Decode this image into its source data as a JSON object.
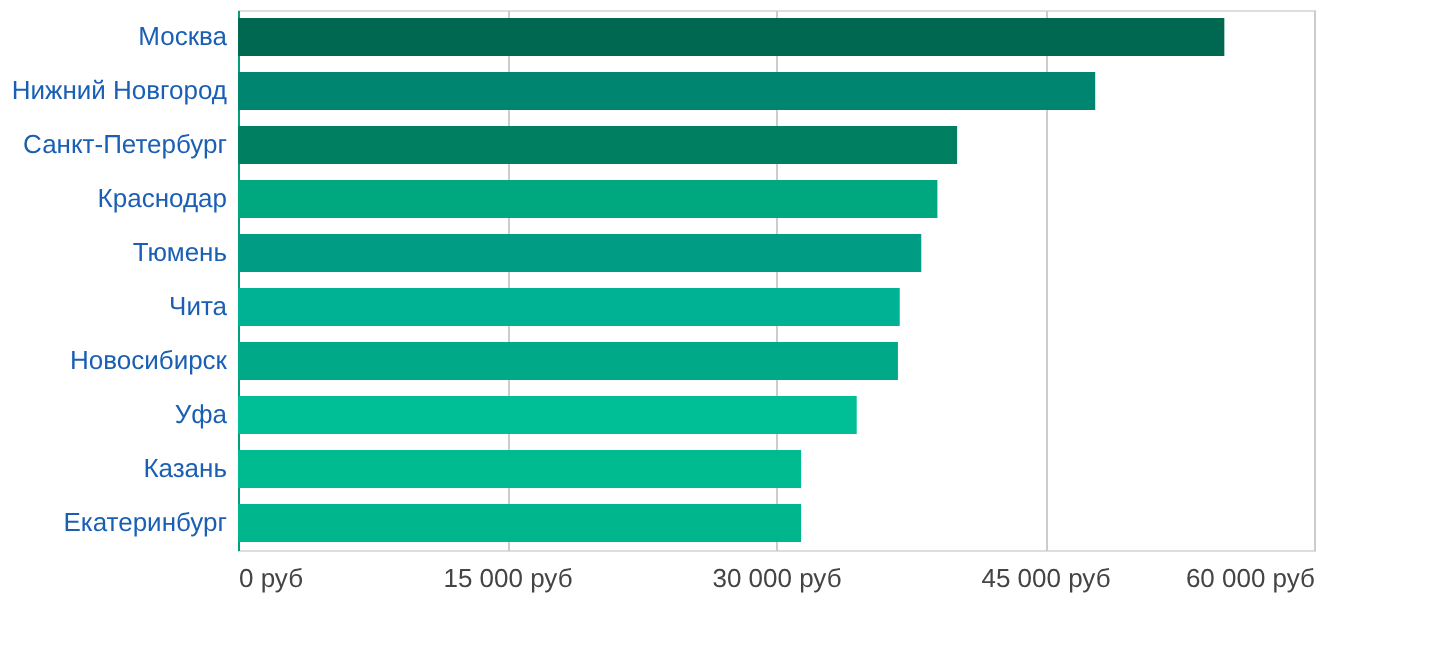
{
  "chart_data": {
    "type": "bar",
    "orientation": "horizontal",
    "categories": [
      "Москва",
      "Нижний Новгород",
      "Санкт-Петербург",
      "Краснодар",
      "Тюмень",
      "Чита",
      "Новосибирск",
      "Уфа",
      "Казань",
      "Екатеринбург"
    ],
    "values": [
      55000,
      47800,
      40100,
      39000,
      38100,
      36900,
      36800,
      34500,
      31400,
      31400
    ],
    "colors": [
      "#006850",
      "#008570",
      "#008060",
      "#00a880",
      "#009c84",
      "#00b294",
      "#00aa88",
      "#00be96",
      "#00ba90",
      "#00b68c"
    ],
    "xlim": [
      0,
      60000
    ],
    "xticks": [
      {
        "value": 0,
        "label": "0 руб"
      },
      {
        "value": 15000,
        "label": "15 000 руб"
      },
      {
        "value": 30000,
        "label": "30 000 руб"
      },
      {
        "value": 45000,
        "label": "45 000 руб"
      },
      {
        "value": 60000,
        "label": "60 000 руб"
      }
    ],
    "grid": "x",
    "legend": false
  }
}
